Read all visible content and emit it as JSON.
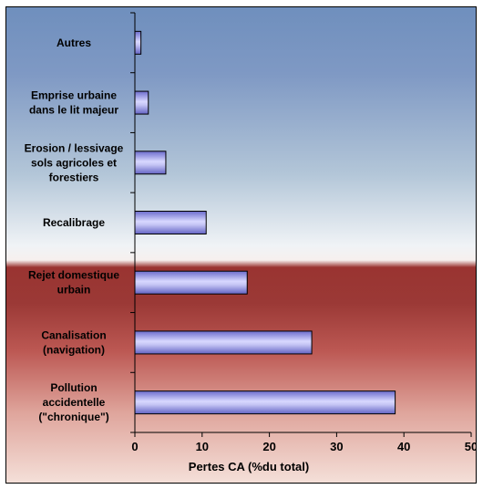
{
  "chart_data": {
    "type": "bar",
    "orientation": "horizontal",
    "categories": [
      "Autres",
      "Emprise urbaine\ndans le lit majeur",
      "Erosion / lessivage\nsols agricoles et\nforestiers",
      "Recalibrage",
      "Rejet domestique\nurbain",
      "Canalisation\n(navigation)",
      "Pollution\naccidentelle\n(\"chronique\")"
    ],
    "values": [
      0.9,
      2.0,
      4.6,
      10.6,
      16.7,
      26.3,
      38.7
    ],
    "title": "",
    "xlabel": "Pertes CA (%du total)",
    "ylabel": "",
    "xlim": [
      0,
      50
    ],
    "xticks": [
      0,
      10,
      20,
      30,
      40,
      50
    ],
    "grid": false,
    "legend": "none",
    "colors": {
      "bar_fill_dark": "#7b7bd6",
      "bar_fill_light": "#d8d8ff",
      "bar_stroke": "#000000",
      "bg_top": "#7f99c4",
      "bg_mid": "#eef2f6",
      "bg_red": "#a8413d",
      "bg_bottom": "#f3ddd6"
    }
  }
}
